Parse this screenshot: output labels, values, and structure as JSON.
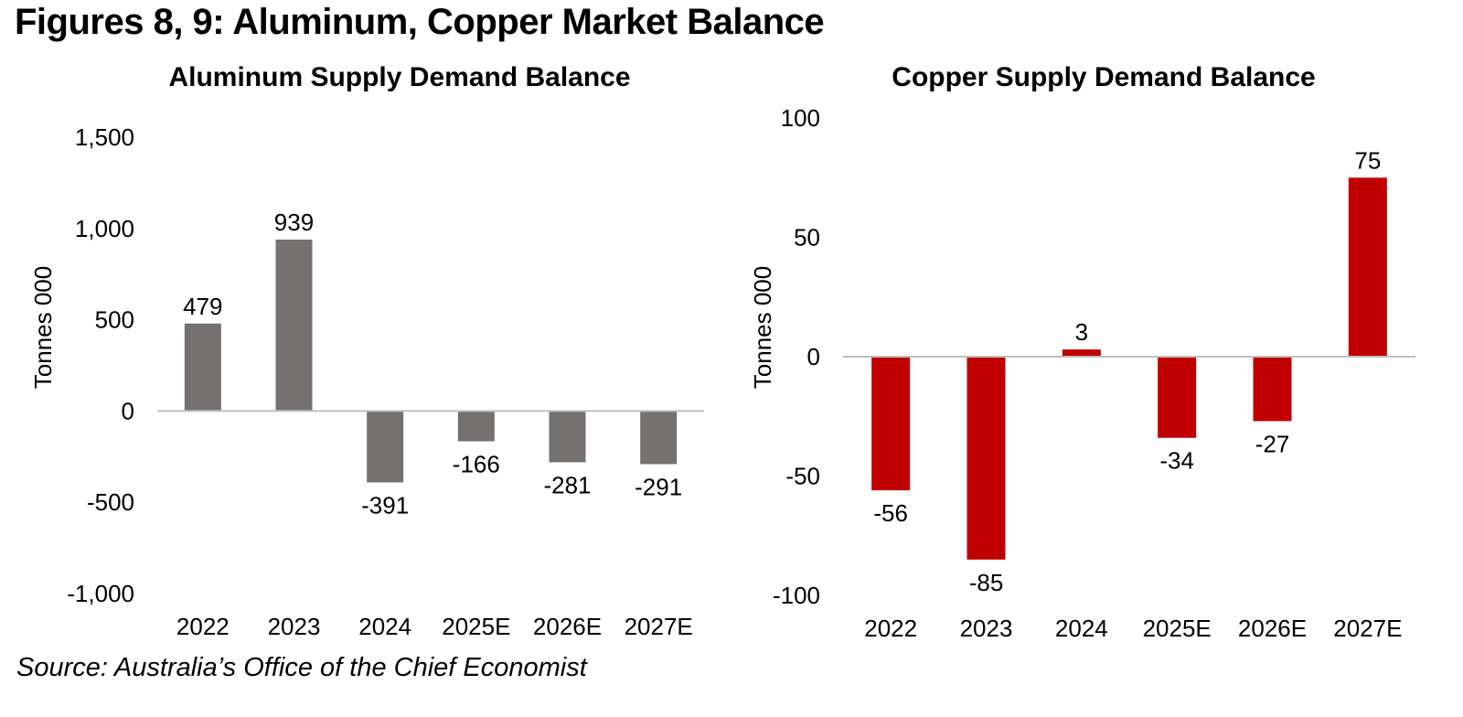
{
  "figure_title": "Figures 8, 9: Aluminum, Copper Market Balance",
  "source": "Source: Australia’s Office of the Chief Economist",
  "colors": {
    "aluminum_bar": "#767171",
    "copper_bar": "#C00000",
    "axis": "#BFBFBF"
  },
  "chart_data": [
    {
      "type": "bar",
      "title": "Aluminum Supply Demand Balance",
      "ylabel": "Tonnes 000",
      "xlabel": "",
      "categories": [
        "2022",
        "2023",
        "2024",
        "2025E",
        "2026E",
        "2027E"
      ],
      "values": [
        479,
        939,
        -391,
        -166,
        -281,
        -291
      ],
      "data_labels": [
        "479",
        "939",
        "-391",
        "-166",
        "-281",
        "-291"
      ],
      "ylim": [
        -1000,
        1500
      ],
      "yticks": [
        1500,
        1000,
        500,
        0,
        -500,
        -1000
      ],
      "ytick_labels": [
        "1,500",
        "1,000",
        "500",
        "0",
        "-500",
        "-1,000"
      ],
      "grid": false,
      "legend": "none"
    },
    {
      "type": "bar",
      "title": "Copper Supply Demand Balance",
      "ylabel": "Tonnes 000",
      "xlabel": "",
      "categories": [
        "2022",
        "2023",
        "2024",
        "2025E",
        "2026E",
        "2027E"
      ],
      "values": [
        -56,
        -85,
        3,
        -34,
        -27,
        75
      ],
      "data_labels": [
        "-56",
        "-85",
        "3",
        "-34",
        "-27",
        "75"
      ],
      "ylim": [
        -100,
        100
      ],
      "yticks": [
        100,
        50,
        0,
        -50,
        -100
      ],
      "ytick_labels": [
        "100",
        "50",
        "0",
        "-50",
        "-100"
      ],
      "grid": false,
      "legend": "none"
    }
  ]
}
